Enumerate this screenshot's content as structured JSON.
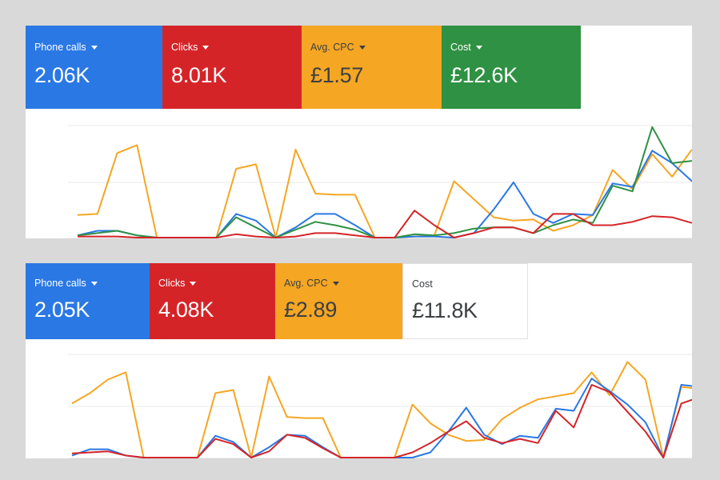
{
  "colors": {
    "blue": "#2a78e4",
    "red": "#d52428",
    "orange": "#f5a623",
    "green": "#2f9143",
    "grid": "#e8e8e8"
  },
  "panels": [
    {
      "metrics": [
        {
          "label": "Phone calls",
          "value": "2.06K",
          "color": "#2a78e4",
          "selected": true,
          "dropdown": true
        },
        {
          "label": "Clicks",
          "value": "8.01K",
          "color": "#d52428",
          "selected": true,
          "dropdown": true
        },
        {
          "label": "Avg. CPC",
          "value": "£1.57",
          "color": "#f5a623",
          "selected": true,
          "dropdown": true
        },
        {
          "label": "Cost",
          "value": "£12.6K",
          "color": "#2f9143",
          "selected": true,
          "dropdown": true
        }
      ]
    },
    {
      "metrics": [
        {
          "label": "Phone calls",
          "value": "2.05K",
          "color": "#2a78e4",
          "selected": true,
          "dropdown": true
        },
        {
          "label": "Clicks",
          "value": "4.08K",
          "color": "#d52428",
          "selected": true,
          "dropdown": true
        },
        {
          "label": "Avg. CPC",
          "value": "£2.89",
          "color": "#f5a623",
          "selected": true,
          "dropdown": true
        },
        {
          "label": "Cost",
          "value": "£11.8K",
          "color": "#ffffff",
          "selected": false,
          "dropdown": false
        }
      ]
    }
  ],
  "chart_data": [
    {
      "type": "line",
      "grid": true,
      "ylim": [
        0,
        100
      ],
      "series": [
        {
          "color": "#f5a623",
          "values": [
            20,
            21,
            75,
            82,
            0,
            0,
            0,
            0,
            61,
            65,
            0,
            78,
            39,
            38,
            38,
            0,
            0,
            1,
            2,
            50,
            34,
            18,
            15,
            16,
            6,
            11,
            20,
            60,
            43,
            74,
            54,
            78
          ]
        },
        {
          "color": "#2a78e4",
          "values": [
            2,
            6,
            6,
            2,
            0,
            0,
            0,
            0,
            21,
            15,
            0,
            9,
            21,
            21,
            11,
            0,
            0,
            1,
            1,
            0,
            4,
            25,
            49,
            21,
            13,
            21,
            20,
            48,
            45,
            77,
            66,
            50
          ]
        },
        {
          "color": "#2f9143",
          "values": [
            2,
            4,
            6,
            2,
            0,
            0,
            0,
            0,
            18,
            9,
            0,
            7,
            14,
            11,
            7,
            0,
            0,
            3,
            2,
            4,
            8,
            9,
            9,
            4,
            11,
            16,
            13,
            46,
            41,
            98,
            66,
            68
          ]
        },
        {
          "color": "#d52428",
          "values": [
            1,
            1,
            1,
            0,
            0,
            0,
            0,
            0,
            3,
            1,
            0,
            1,
            4,
            4,
            2,
            0,
            0,
            24,
            11,
            0,
            4,
            9,
            9,
            4,
            21,
            21,
            11,
            11,
            14,
            19,
            18,
            13
          ]
        }
      ]
    },
    {
      "type": "line",
      "grid": true,
      "ylim": [
        0,
        100
      ],
      "series": [
        {
          "color": "#f5a623",
          "values": [
            52,
            62,
            75,
            82,
            0,
            0,
            0,
            0,
            62,
            65,
            0,
            78,
            39,
            38,
            38,
            0,
            0,
            0,
            0,
            51,
            33,
            22,
            16,
            17,
            37,
            48,
            56,
            59,
            62,
            82,
            60,
            92,
            75,
            0,
            68,
            66
          ]
        },
        {
          "color": "#2a78e4",
          "values": [
            2,
            8,
            8,
            2,
            0,
            0,
            0,
            0,
            21,
            15,
            0,
            10,
            22,
            21,
            10,
            0,
            0,
            0,
            0,
            0,
            5,
            25,
            48,
            22,
            13,
            21,
            19,
            47,
            45,
            76,
            64,
            51,
            34,
            0,
            70,
            68
          ]
        },
        {
          "color": "#d52428",
          "values": [
            4,
            5,
            6,
            2,
            0,
            0,
            0,
            0,
            18,
            13,
            0,
            6,
            22,
            19,
            9,
            0,
            0,
            0,
            0,
            5,
            14,
            25,
            35,
            19,
            14,
            18,
            14,
            45,
            29,
            70,
            63,
            44,
            25,
            0,
            52,
            58
          ]
        }
      ]
    }
  ]
}
